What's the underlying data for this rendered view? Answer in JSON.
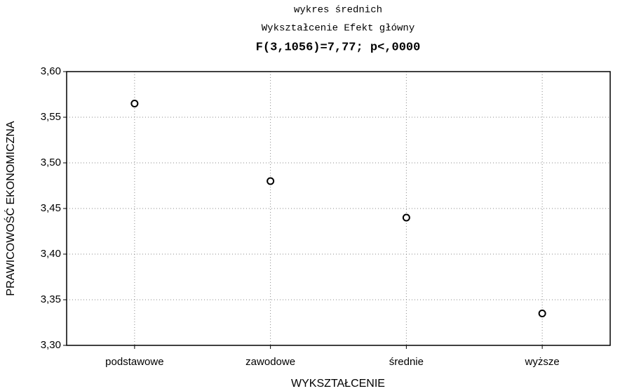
{
  "chart_data": {
    "type": "line",
    "title": "wykres średnich",
    "subtitle": "Wykształcenie Efekt główny",
    "annotation": "F(3,1056)=7,77; p<,0000",
    "x_label": "WYKSZTAŁCENIE",
    "y_label": "PRAWICOWOŚĆ EKONOMICZNA",
    "categories": [
      "podstawowe",
      "zawodowe",
      "średnie",
      "wyższe"
    ],
    "series": [
      {
        "color": "#000000",
        "values": [
          3.565,
          3.48,
          3.44,
          3.335
        ]
      }
    ],
    "ylim": [
      3.3,
      3.6
    ],
    "yticks": [
      {
        "value": 3.3,
        "label": "3,30"
      },
      {
        "value": 3.35,
        "label": "3,35"
      },
      {
        "value": 3.4,
        "label": "3,40"
      },
      {
        "value": 3.45,
        "label": "3,45"
      },
      {
        "value": 3.5,
        "label": "3,50"
      },
      {
        "value": 3.55,
        "label": "3,55"
      },
      {
        "value": 3.6,
        "label": "3,60"
      }
    ],
    "grid": true
  }
}
